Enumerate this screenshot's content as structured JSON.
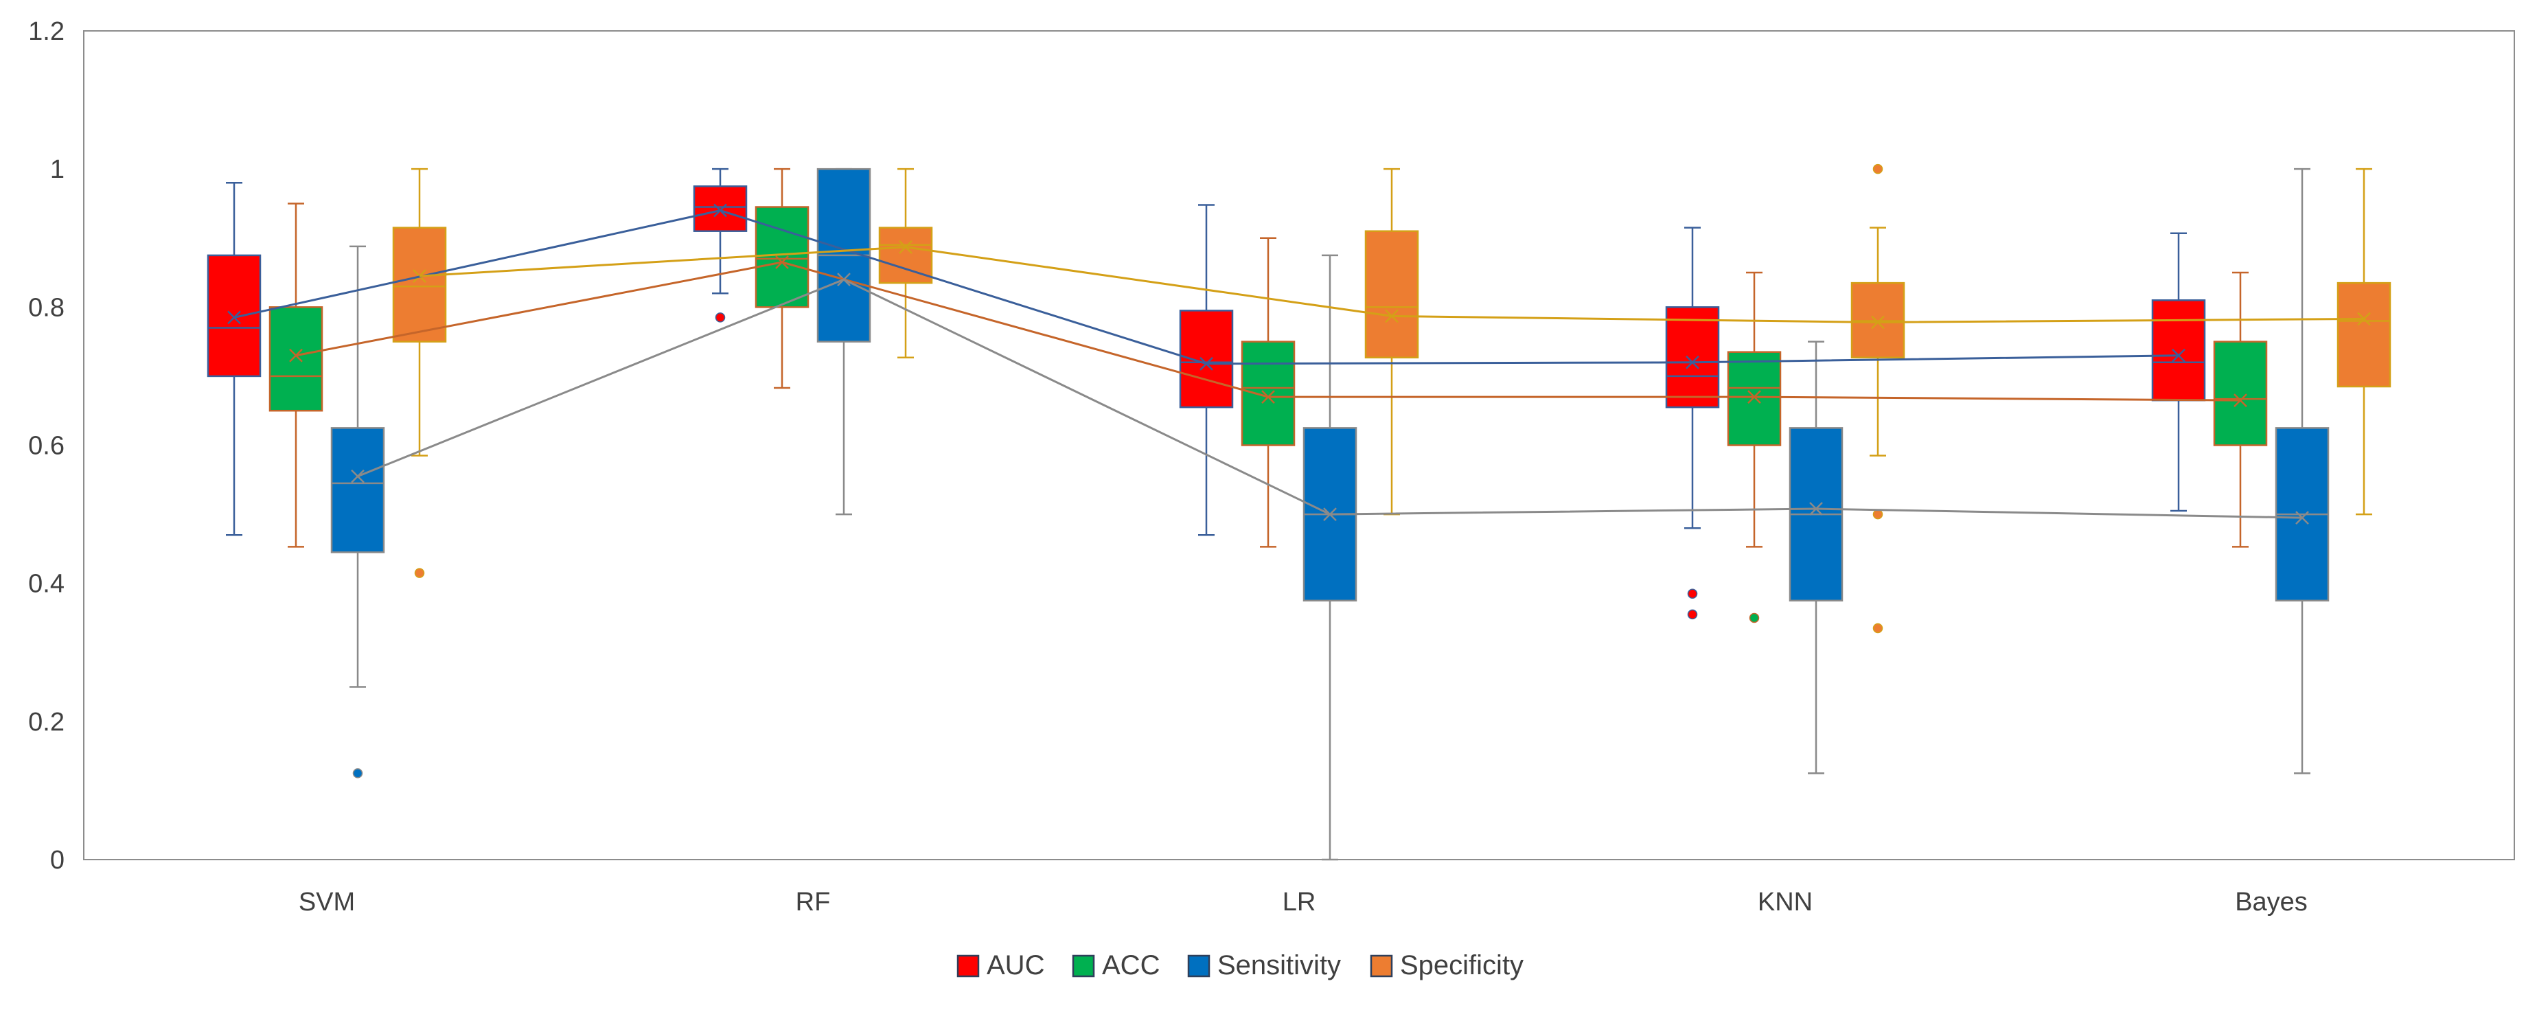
{
  "chart_data": {
    "type": "box",
    "categories": [
      "SVM",
      "RF",
      "LR",
      "KNN",
      "Bayes"
    ],
    "ylim": [
      0,
      1.2
    ],
    "yticks": [
      0,
      0.2,
      0.4,
      0.6,
      0.8,
      1,
      1.2
    ],
    "ytick_labels": [
      "0",
      "0.2",
      "0.4",
      "0.6",
      "0.8",
      "1",
      "1.2"
    ],
    "legend_position": "bottom-center",
    "grid": false,
    "series": [
      {
        "name": "AUC",
        "color": "#ff0000",
        "border": "#3a5f9a",
        "boxes": [
          {
            "whisker_low": 0.47,
            "q1": 0.7,
            "median": 0.77,
            "q3": 0.875,
            "whisker_high": 0.98,
            "mean": 0.785,
            "outliers": []
          },
          {
            "whisker_low": 0.82,
            "q1": 0.91,
            "median": 0.945,
            "q3": 0.975,
            "whisker_high": 1.0,
            "mean": 0.94,
            "outliers": [
              0.785
            ]
          },
          {
            "whisker_low": 0.47,
            "q1": 0.655,
            "median": 0.72,
            "q3": 0.795,
            "whisker_high": 0.948,
            "mean": 0.718,
            "outliers": []
          },
          {
            "whisker_low": 0.48,
            "q1": 0.655,
            "median": 0.7,
            "q3": 0.8,
            "whisker_high": 0.915,
            "mean": 0.72,
            "outliers": [
              0.385,
              0.355
            ]
          },
          {
            "whisker_low": 0.505,
            "q1": 0.665,
            "median": 0.72,
            "q3": 0.81,
            "whisker_high": 0.907,
            "mean": 0.73,
            "outliers": []
          }
        ]
      },
      {
        "name": "ACC",
        "color": "#00b050",
        "border": "#c5652a",
        "boxes": [
          {
            "whisker_low": 0.453,
            "q1": 0.65,
            "median": 0.7,
            "q3": 0.8,
            "whisker_high": 0.95,
            "mean": 0.73,
            "outliers": []
          },
          {
            "whisker_low": 0.683,
            "q1": 0.8,
            "median": 0.87,
            "q3": 0.945,
            "whisker_high": 1.0,
            "mean": 0.865,
            "outliers": []
          },
          {
            "whisker_low": 0.453,
            "q1": 0.6,
            "median": 0.683,
            "q3": 0.75,
            "whisker_high": 0.9,
            "mean": 0.67,
            "outliers": []
          },
          {
            "whisker_low": 0.453,
            "q1": 0.6,
            "median": 0.683,
            "q3": 0.735,
            "whisker_high": 0.85,
            "mean": 0.67,
            "outliers": [
              0.35
            ]
          },
          {
            "whisker_low": 0.453,
            "q1": 0.6,
            "median": 0.667,
            "q3": 0.75,
            "whisker_high": 0.85,
            "mean": 0.665,
            "outliers": []
          }
        ]
      },
      {
        "name": "Sensitivity",
        "color": "#0070c0",
        "border": "#8a8a8a",
        "boxes": [
          {
            "whisker_low": 0.25,
            "q1": 0.445,
            "median": 0.545,
            "q3": 0.625,
            "whisker_high": 0.888,
            "mean": 0.555,
            "outliers": [
              0.125
            ]
          },
          {
            "whisker_low": 0.5,
            "q1": 0.75,
            "median": 0.875,
            "q3": 1.0,
            "whisker_high": 1.0,
            "mean": 0.84,
            "outliers": []
          },
          {
            "whisker_low": 0.0,
            "q1": 0.375,
            "median": 0.5,
            "q3": 0.625,
            "whisker_high": 0.875,
            "mean": 0.5,
            "outliers": []
          },
          {
            "whisker_low": 0.125,
            "q1": 0.375,
            "median": 0.5,
            "q3": 0.625,
            "whisker_high": 0.75,
            "mean": 0.508,
            "outliers": []
          },
          {
            "whisker_low": 0.125,
            "q1": 0.375,
            "median": 0.5,
            "q3": 0.625,
            "whisker_high": 1.0,
            "mean": 0.495,
            "outliers": []
          }
        ]
      },
      {
        "name": "Specificity",
        "color": "#ed7d31",
        "border": "#d4a017",
        "boxes": [
          {
            "whisker_low": 0.585,
            "q1": 0.75,
            "median": 0.83,
            "q3": 0.915,
            "whisker_high": 1.0,
            "mean": 0.845,
            "outliers": [
              0.415
            ]
          },
          {
            "whisker_low": 0.727,
            "q1": 0.835,
            "median": 0.89,
            "q3": 0.915,
            "whisker_high": 1.0,
            "mean": 0.887,
            "outliers": []
          },
          {
            "whisker_low": 0.5,
            "q1": 0.727,
            "median": 0.8,
            "q3": 0.91,
            "whisker_high": 1.0,
            "mean": 0.787,
            "outliers": []
          },
          {
            "whisker_low": 0.585,
            "q1": 0.727,
            "median": 0.78,
            "q3": 0.835,
            "whisker_high": 0.915,
            "mean": 0.778,
            "outliers": [
              1.0,
              0.5,
              0.335
            ]
          },
          {
            "whisker_low": 0.5,
            "q1": 0.685,
            "median": 0.78,
            "q3": 0.835,
            "whisker_high": 1.0,
            "mean": 0.783,
            "outliers": []
          }
        ]
      }
    ]
  }
}
